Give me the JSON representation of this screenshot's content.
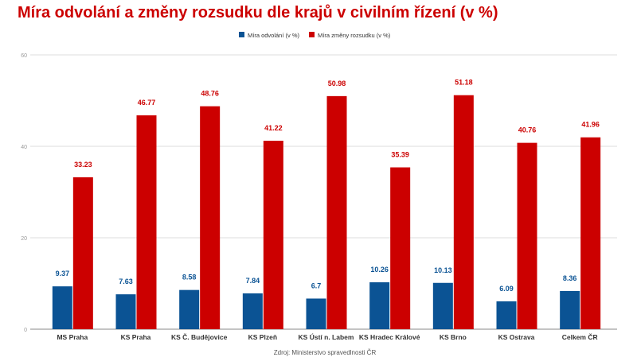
{
  "chart_data": {
    "type": "bar",
    "title": "Míra odvolání a změny rozsudku dle krajů v civilním řízení (v %)",
    "source": "Zdroj: Ministerstvo spravedlnosti ČR",
    "categories": [
      "MS Praha",
      "KS Praha",
      "KS Č. Budějovice",
      "KS Plzeň",
      "KS Ústí n. Labem",
      "KS Hradec Králové",
      "KS Brno",
      "KS Ostrava",
      "Celkem ČR"
    ],
    "series": [
      {
        "name": "Míra odvolání (v %)",
        "color": "#0b5394",
        "values": [
          9.37,
          7.63,
          8.58,
          7.84,
          6.7,
          10.26,
          10.13,
          6.09,
          8.36
        ]
      },
      {
        "name": "Míra změny rozsudku (v %)",
        "color": "#cc0000",
        "values": [
          33.23,
          46.77,
          48.76,
          41.22,
          50.98,
          35.39,
          51.18,
          40.76,
          41.96
        ]
      }
    ],
    "ylim": [
      0,
      60
    ],
    "yticks": [
      0,
      20,
      40,
      60
    ],
    "grid": true,
    "legend": "top",
    "data_labels": true
  }
}
